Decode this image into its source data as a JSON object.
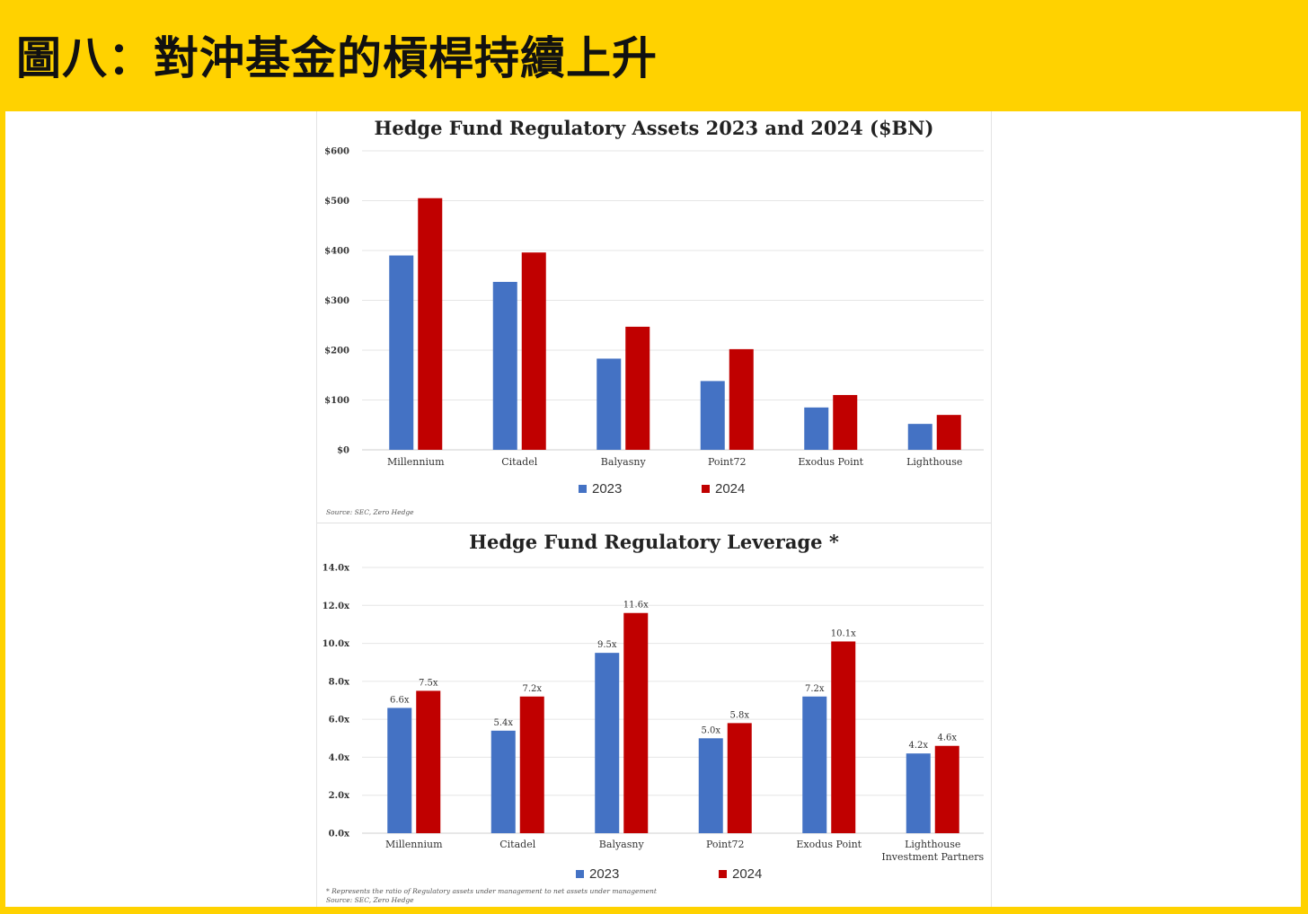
{
  "header": {
    "title": "圖八：對沖基金的槓桿持續上升"
  },
  "chart_data": [
    {
      "type": "bar",
      "title": "Hedge Fund Regulatory Assets 2023 and 2024 ($BN)",
      "categories": [
        "Millennium",
        "Citadel",
        "Balyasny",
        "Point72",
        "Exodus Point",
        "Lighthouse"
      ],
      "series": [
        {
          "name": "2023",
          "color": "#4472c4",
          "values": [
            390,
            337,
            183,
            138,
            85,
            52
          ]
        },
        {
          "name": "2024",
          "color": "#c00000",
          "values": [
            505,
            396,
            247,
            202,
            110,
            70
          ]
        }
      ],
      "yticks": [
        "$0",
        "$100",
        "$200",
        "$300",
        "$400",
        "$500",
        "$600"
      ],
      "ylim": [
        0,
        600
      ],
      "grid": true,
      "legend": "bottom",
      "source": "Source: SEC, Zero Hedge"
    },
    {
      "type": "bar",
      "title": "Hedge Fund Regulatory Leverage *",
      "categories": [
        "Millennium",
        "Citadel",
        "Balyasny",
        "Point72",
        "Exodus Point",
        "Lighthouse Investment Partners"
      ],
      "series": [
        {
          "name": "2023",
          "color": "#4472c4",
          "values": [
            6.6,
            5.4,
            9.5,
            5.0,
            7.2,
            4.2
          ],
          "labels": [
            "6.6x",
            "5.4x",
            "9.5x",
            "5.0x",
            "7.2x",
            "4.2x"
          ]
        },
        {
          "name": "2024",
          "color": "#c00000",
          "values": [
            7.5,
            7.2,
            11.6,
            5.8,
            10.1,
            4.6
          ],
          "labels": [
            "7.5x",
            "7.2x",
            "11.6x",
            "5.8x",
            "10.1x",
            "4.6x"
          ]
        }
      ],
      "yticks": [
        "0.0x",
        "2.0x",
        "4.0x",
        "6.0x",
        "8.0x",
        "10.0x",
        "12.0x",
        "14.0x"
      ],
      "ylim": [
        0,
        14
      ],
      "grid": true,
      "legend": "bottom",
      "footnote": "* Represents the ratio of Regulatory assets under management to net assets under management",
      "source": "Source: SEC, Zero Hedge"
    }
  ]
}
